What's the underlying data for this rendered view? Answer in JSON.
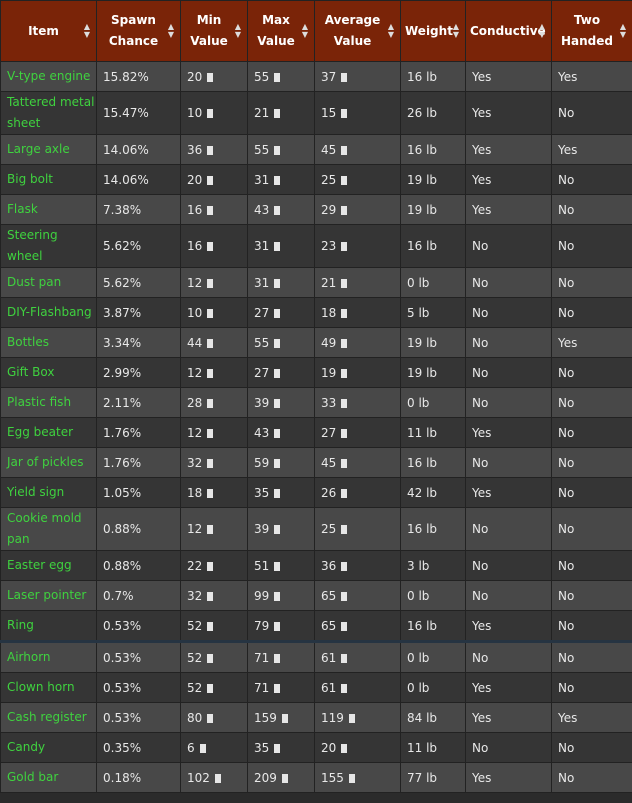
{
  "headers": [
    {
      "label": "Item"
    },
    {
      "label": "Spawn Chance"
    },
    {
      "label": "Min Value"
    },
    {
      "label": "Max Value"
    },
    {
      "label": "Average Value"
    },
    {
      "label": "Weight"
    },
    {
      "label": "Conductive"
    },
    {
      "label": "Two Handed"
    }
  ],
  "sort_icon": "sort-arrows-icon",
  "rows": [
    {
      "item": "V-type engine",
      "spawn": "15.82%",
      "min": "20",
      "max": "55",
      "avg": "37",
      "weight": "16 lb",
      "conductive": "Yes",
      "two_handed": "Yes"
    },
    {
      "item": "Tattered metal sheet",
      "spawn": "15.47%",
      "min": "10",
      "max": "21",
      "avg": "15",
      "weight": "26 lb",
      "conductive": "Yes",
      "two_handed": "No"
    },
    {
      "item": "Large axle",
      "spawn": "14.06%",
      "min": "36",
      "max": "55",
      "avg": "45",
      "weight": "16 lb",
      "conductive": "Yes",
      "two_handed": "Yes"
    },
    {
      "item": "Big bolt",
      "spawn": "14.06%",
      "min": "20",
      "max": "31",
      "avg": "25",
      "weight": "19 lb",
      "conductive": "Yes",
      "two_handed": "No"
    },
    {
      "item": "Flask",
      "spawn": "7.38%",
      "min": "16",
      "max": "43",
      "avg": "29",
      "weight": "19 lb",
      "conductive": "Yes",
      "two_handed": "No"
    },
    {
      "item": "Steering wheel",
      "spawn": "5.62%",
      "min": "16",
      "max": "31",
      "avg": "23",
      "weight": "16 lb",
      "conductive": "No",
      "two_handed": "No"
    },
    {
      "item": "Dust pan",
      "spawn": "5.62%",
      "min": "12",
      "max": "31",
      "avg": "21",
      "weight": "0 lb",
      "conductive": "No",
      "two_handed": "No"
    },
    {
      "item": "DIY-Flashbang",
      "spawn": "3.87%",
      "min": "10",
      "max": "27",
      "avg": "18",
      "weight": "5 lb",
      "conductive": "No",
      "two_handed": "No"
    },
    {
      "item": "Bottles",
      "spawn": "3.34%",
      "min": "44",
      "max": "55",
      "avg": "49",
      "weight": "19 lb",
      "conductive": "No",
      "two_handed": "Yes"
    },
    {
      "item": "Gift Box",
      "spawn": "2.99%",
      "min": "12",
      "max": "27",
      "avg": "19",
      "weight": "19 lb",
      "conductive": "No",
      "two_handed": "No"
    },
    {
      "item": "Plastic fish",
      "spawn": "2.11%",
      "min": "28",
      "max": "39",
      "avg": "33",
      "weight": "0 lb",
      "conductive": "No",
      "two_handed": "No"
    },
    {
      "item": "Egg beater",
      "spawn": "1.76%",
      "min": "12",
      "max": "43",
      "avg": "27",
      "weight": "11 lb",
      "conductive": "Yes",
      "two_handed": "No"
    },
    {
      "item": "Jar of pickles",
      "spawn": "1.76%",
      "min": "32",
      "max": "59",
      "avg": "45",
      "weight": "16 lb",
      "conductive": "No",
      "two_handed": "No"
    },
    {
      "item": "Yield sign",
      "spawn": "1.05%",
      "min": "18",
      "max": "35",
      "avg": "26",
      "weight": "42 lb",
      "conductive": "Yes",
      "two_handed": "No"
    },
    {
      "item": "Cookie mold pan",
      "spawn": "0.88%",
      "min": "12",
      "max": "39",
      "avg": "25",
      "weight": "16 lb",
      "conductive": "No",
      "two_handed": "No"
    },
    {
      "item": "Easter egg",
      "spawn": "0.88%",
      "min": "22",
      "max": "51",
      "avg": "36",
      "weight": "3 lb",
      "conductive": "No",
      "two_handed": "No"
    },
    {
      "item": "Laser pointer",
      "spawn": "0.7%",
      "min": "32",
      "max": "99",
      "avg": "65",
      "weight": "0 lb",
      "conductive": "No",
      "two_handed": "No"
    },
    {
      "item": "Ring",
      "spawn": "0.53%",
      "min": "52",
      "max": "79",
      "avg": "65",
      "weight": "16 lb",
      "conductive": "Yes",
      "two_handed": "No"
    },
    {
      "item": "Airhorn",
      "spawn": "0.53%",
      "min": "52",
      "max": "71",
      "avg": "61",
      "weight": "0 lb",
      "conductive": "No",
      "two_handed": "No"
    },
    {
      "item": "Clown horn",
      "spawn": "0.53%",
      "min": "52",
      "max": "71",
      "avg": "61",
      "weight": "0 lb",
      "conductive": "Yes",
      "two_handed": "No"
    },
    {
      "item": "Cash register",
      "spawn": "0.53%",
      "min": "80",
      "max": "159",
      "avg": "119",
      "weight": "84 lb",
      "conductive": "Yes",
      "two_handed": "Yes"
    },
    {
      "item": "Candy",
      "spawn": "0.35%",
      "min": "6",
      "max": "35",
      "avg": "20",
      "weight": "11 lb",
      "conductive": "No",
      "two_handed": "No"
    },
    {
      "item": "Gold bar",
      "spawn": "0.18%",
      "min": "102",
      "max": "209",
      "avg": "155",
      "weight": "77 lb",
      "conductive": "Yes",
      "two_handed": "No"
    }
  ]
}
